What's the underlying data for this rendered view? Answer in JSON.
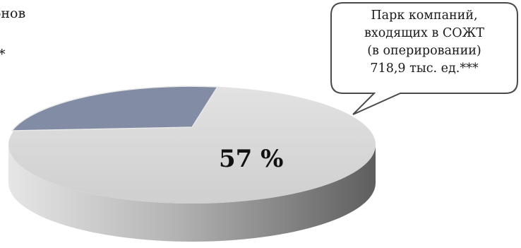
{
  "page": {
    "title_fragment": "гонов",
    "star_fragment": "*"
  },
  "chart_data": {
    "type": "pie",
    "style": "3d",
    "slices": [
      {
        "value": 57,
        "label": "57 %",
        "color": "#d6d6d6"
      },
      {
        "value": 28,
        "label": "",
        "color": "#828ca4"
      },
      {
        "value": 15,
        "label": "",
        "color": "#c4c4c4"
      }
    ],
    "callout": {
      "lines": [
        "Парк компаний,",
        "входящих в СОЖТ",
        "(в оперировании)",
        "718,9 тыс. ед.***"
      ]
    }
  }
}
